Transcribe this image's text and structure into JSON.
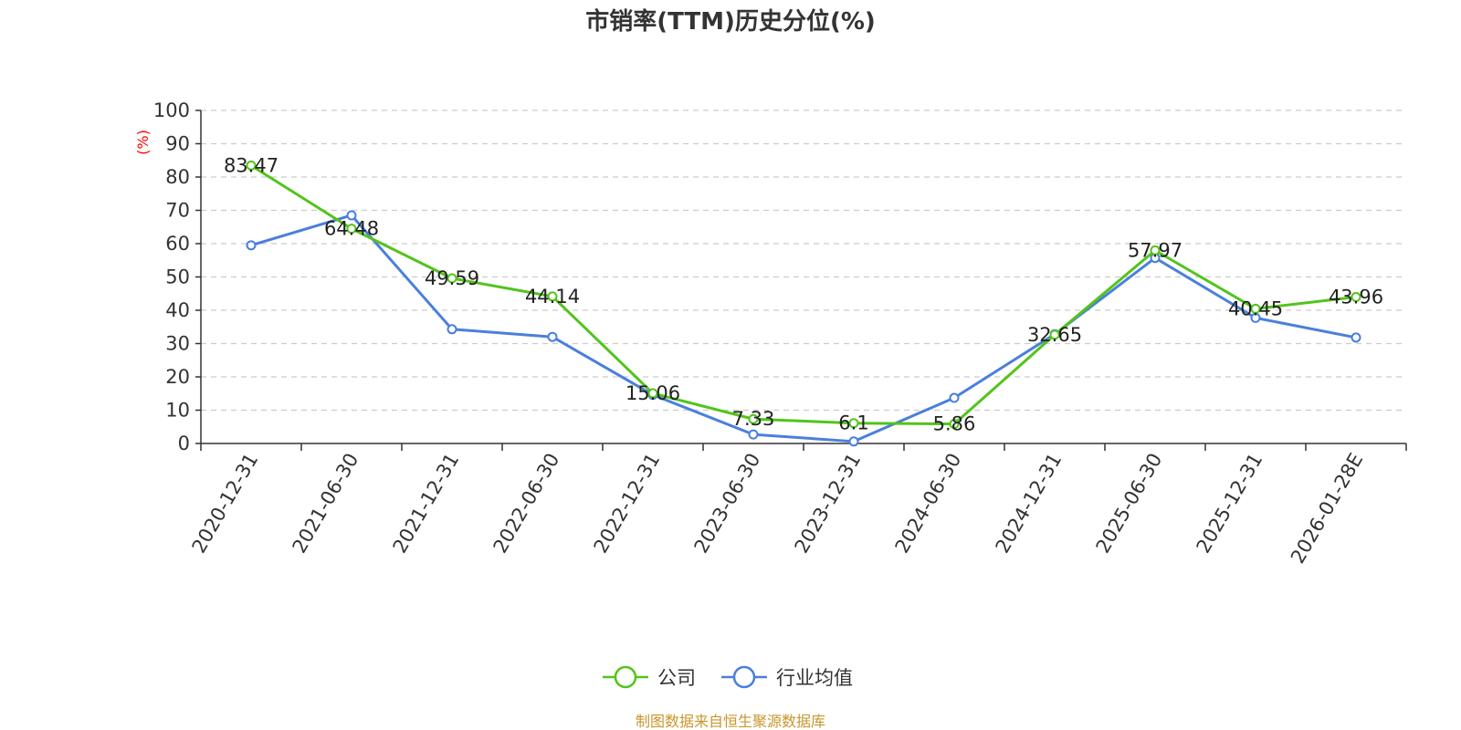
{
  "chart_data": {
    "type": "line",
    "title": "市销率(TTM)历史分位(%)",
    "ylabel": "(%)",
    "ylim": [
      0,
      100
    ],
    "y_ticks": [
      "0",
      "10",
      "20",
      "30",
      "40",
      "50",
      "60",
      "70",
      "80",
      "90",
      "100"
    ],
    "categories": [
      "2020-12-31",
      "2021-06-30",
      "2021-12-31",
      "2022-06-30",
      "2022-12-31",
      "2023-06-30",
      "2023-12-31",
      "2024-06-30",
      "2024-12-31",
      "2025-06-30",
      "2025-12-31",
      "2026-01-28E"
    ],
    "grid": true,
    "legend_position": "bottom",
    "series": [
      {
        "name": "公司",
        "color": "#52c41a",
        "values": [
          83.47,
          64.48,
          49.59,
          44.14,
          15.06,
          7.33,
          6.1,
          5.86,
          32.65,
          57.97,
          40.45,
          43.96
        ],
        "labels": [
          "83.47",
          "64.48",
          "49.59",
          "44.14",
          "15.06",
          "7.33",
          "6.1",
          "5.86",
          "32.65",
          "57.97",
          "40.45",
          "43.96"
        ]
      },
      {
        "name": "行业均值",
        "color": "#4a7fdc",
        "values": [
          59.5,
          68.5,
          34.3,
          32.0,
          14.6,
          2.7,
          0.6,
          13.7,
          32.8,
          55.7,
          37.7,
          31.8
        ]
      }
    ],
    "source": "制图数据来自恒生聚源数据库",
    "colors": {
      "axis": "#333333",
      "grid": "#cccccc",
      "ylabel": "#ff0000",
      "source": "#c8962a"
    }
  }
}
